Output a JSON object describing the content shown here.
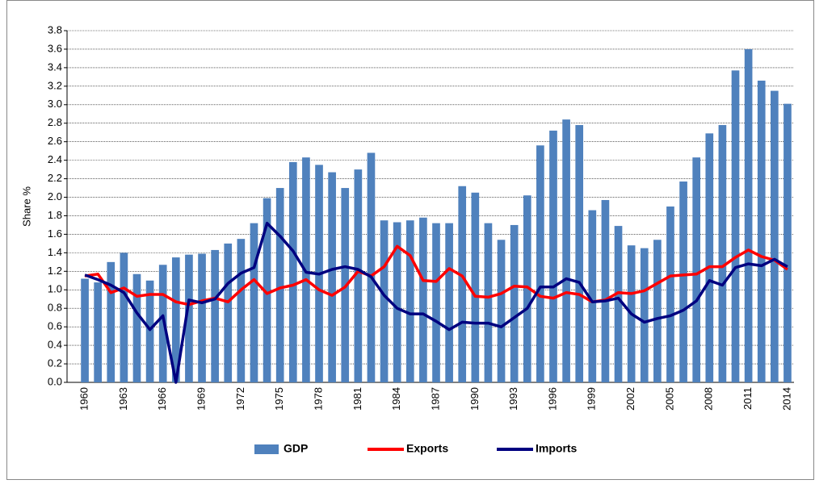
{
  "chart_data": {
    "type": "bar_line",
    "y_label": "Share  %",
    "categories": [
      "1960",
      null,
      null,
      "1963",
      null,
      null,
      "1966",
      null,
      null,
      "1969",
      null,
      null,
      "1972",
      null,
      null,
      "1975",
      null,
      null,
      "1978",
      null,
      null,
      "1981",
      null,
      null,
      "1984",
      null,
      null,
      "1987",
      null,
      null,
      "1990",
      null,
      null,
      "1993",
      null,
      null,
      "1996",
      null,
      null,
      "1999",
      null,
      null,
      "2002",
      null,
      null,
      "2005",
      null,
      null,
      "2008",
      null,
      null,
      "2011",
      null,
      null,
      "2014"
    ],
    "series": [
      {
        "name": "GDP",
        "type": "bar",
        "color": "#4f81bd",
        "values": [
          1.12,
          1.08,
          1.3,
          1.4,
          1.17,
          1.1,
          1.27,
          1.35,
          1.38,
          1.39,
          1.43,
          1.5,
          1.55,
          1.72,
          1.99,
          2.1,
          2.38,
          2.43,
          2.35,
          2.27,
          2.1,
          2.3,
          2.48,
          1.75,
          1.73,
          1.75,
          1.78,
          1.72,
          1.72,
          2.12,
          2.05,
          1.72,
          1.54,
          1.7,
          2.02,
          2.56,
          2.72,
          2.84,
          2.78,
          1.86,
          1.97,
          1.69,
          1.48,
          1.45,
          1.54,
          1.9,
          2.17,
          2.43,
          2.69,
          2.78,
          3.37,
          3.6,
          3.26,
          3.15,
          3.01
        ]
      },
      {
        "name": "Exports",
        "type": "line",
        "color": "#ff0000",
        "values": [
          1.15,
          1.17,
          0.97,
          1.02,
          0.93,
          0.95,
          0.95,
          0.87,
          0.84,
          0.88,
          0.91,
          0.87,
          1.0,
          1.11,
          0.96,
          1.02,
          1.05,
          1.11,
          1.0,
          0.94,
          1.03,
          1.2,
          1.15,
          1.25,
          1.47,
          1.37,
          1.1,
          1.09,
          1.23,
          1.15,
          0.93,
          0.92,
          0.96,
          1.04,
          1.03,
          0.93,
          0.91,
          0.97,
          0.95,
          0.87,
          0.89,
          0.97,
          0.96,
          0.99,
          1.07,
          1.15,
          1.16,
          1.17,
          1.25,
          1.25,
          1.35,
          1.43,
          1.36,
          1.32,
          1.22
        ]
      },
      {
        "name": "Imports",
        "type": "line",
        "color": "#000080",
        "values": [
          1.16,
          1.11,
          1.05,
          0.97,
          0.75,
          0.57,
          0.72,
          0.0,
          0.89,
          0.86,
          0.9,
          1.07,
          1.18,
          1.24,
          1.72,
          1.58,
          1.42,
          1.19,
          1.17,
          1.22,
          1.25,
          1.22,
          1.14,
          0.94,
          0.8,
          0.74,
          0.74,
          0.66,
          0.57,
          0.65,
          0.64,
          0.64,
          0.6,
          0.7,
          0.8,
          1.03,
          1.03,
          1.12,
          1.08,
          0.87,
          0.88,
          0.91,
          0.74,
          0.65,
          0.69,
          0.72,
          0.78,
          0.88,
          1.1,
          1.05,
          1.24,
          1.28,
          1.26,
          1.33,
          1.25
        ]
      }
    ],
    "ylim": [
      0,
      3.8
    ],
    "yticks": [
      {
        "value": 0,
        "label": "0.0"
      },
      0.2,
      0.4,
      0.6,
      0.8,
      {
        "value": 1,
        "label": "1.0"
      },
      1.2,
      1.4,
      1.6,
      1.8,
      {
        "value": 2,
        "label": "2.0"
      },
      2.2,
      2.4,
      2.6,
      2.8,
      {
        "value": 3,
        "label": "3.0"
      },
      3.2,
      3.4,
      3.6,
      3.8
    ],
    "grid": true,
    "legend": "bottom"
  }
}
